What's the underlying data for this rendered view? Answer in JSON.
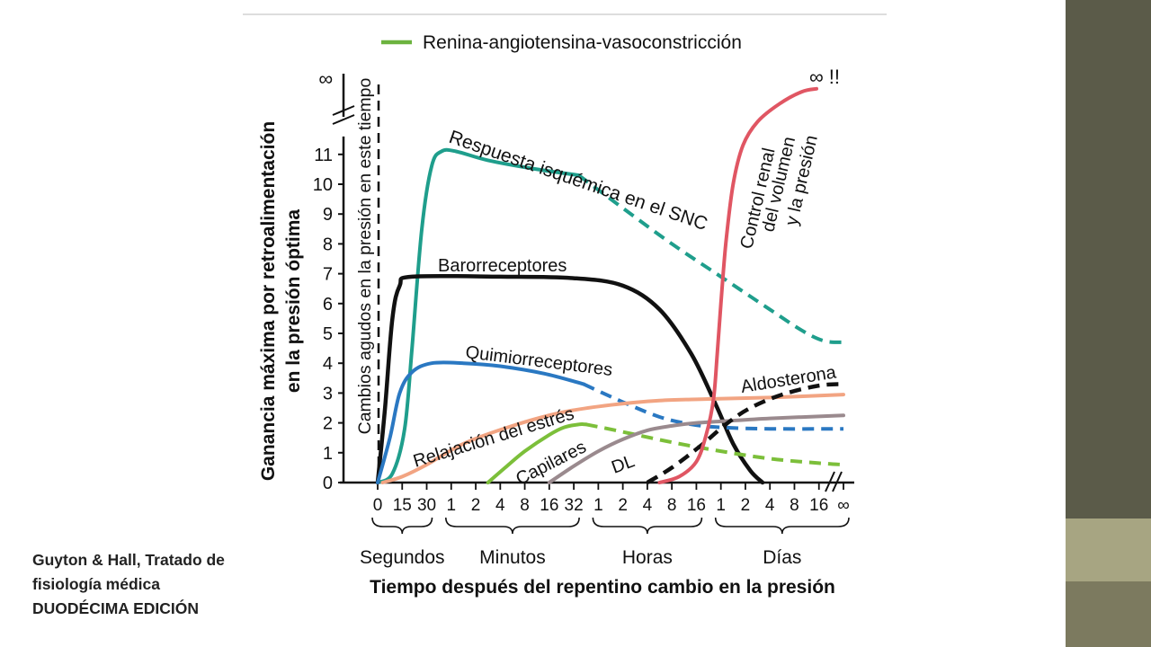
{
  "slide": {
    "accent_colors": [
      "#5b5b49",
      "#a7a582",
      "#7c7a5f"
    ],
    "source_lines": [
      "Guyton & Hall, Tratado de",
      "fisiología médica",
      "DUODÉCIMA EDICIÓN"
    ]
  },
  "chart_data": {
    "type": "line",
    "ylabel": [
      "Ganancia máxima por retroalimentación",
      "en la presión óptima"
    ],
    "xlabel": "Tiempo después del repentino cambio en la presión",
    "y_ticks": [
      "0",
      "1",
      "2",
      "3",
      "4",
      "5",
      "6",
      "7",
      "8",
      "9",
      "10",
      "11"
    ],
    "y_top_label": "∞",
    "ylim": [
      0,
      11
    ],
    "x_ticks": [
      "0",
      "15",
      "30",
      "1",
      "2",
      "4",
      "8",
      "16",
      "32",
      "1",
      "2",
      "4",
      "8",
      "16",
      "1",
      "2",
      "4",
      "8",
      "16",
      "∞"
    ],
    "x_groups": [
      "Segundos",
      "Minutos",
      "Horas",
      "Días"
    ],
    "x_range_index": [
      0,
      19
    ],
    "vertical_annotation": "Cambios agudos en la presión en este tiempo",
    "legend": [
      {
        "label": "Renina-angiotensina-vasoconstricción",
        "color": "#6cb33f"
      }
    ],
    "inf_marker": "∞ !!",
    "series": [
      {
        "name": "Respuesta isquémica en el SNC",
        "color": "#1f9e8c",
        "solid": [
          [
            0,
            0
          ],
          [
            0.6,
            0.3
          ],
          [
            1.1,
            1.8
          ],
          [
            1.4,
            4.5
          ],
          [
            1.8,
            8.5
          ],
          [
            2.2,
            10.6
          ],
          [
            2.6,
            11.1
          ],
          [
            3.2,
            11.1
          ],
          [
            4.5,
            10.8
          ],
          [
            6.5,
            10.5
          ],
          [
            8.2,
            10.3
          ]
        ],
        "dashed": [
          [
            8.2,
            10.3
          ],
          [
            10,
            9.2
          ],
          [
            12,
            8
          ],
          [
            14,
            6.9
          ],
          [
            16,
            5.8
          ],
          [
            17.3,
            5.1
          ],
          [
            18.2,
            4.75
          ],
          [
            19,
            4.7
          ]
        ]
      },
      {
        "name": "Barorreceptores",
        "color": "#111111",
        "solid": [
          [
            0,
            0
          ],
          [
            0.3,
            2.5
          ],
          [
            0.6,
            5.5
          ],
          [
            0.9,
            6.6
          ],
          [
            1.4,
            6.9
          ],
          [
            5,
            6.9
          ],
          [
            8,
            6.85
          ],
          [
            10,
            6.6
          ],
          [
            11.5,
            5.8
          ],
          [
            12.8,
            4.3
          ],
          [
            13.8,
            2.6
          ],
          [
            14.5,
            1.3
          ],
          [
            15.2,
            0.4
          ],
          [
            15.7,
            0
          ]
        ]
      },
      {
        "name": "Quimiorreceptores",
        "color": "#2a78c2",
        "solid": [
          [
            0,
            0
          ],
          [
            0.5,
            1.5
          ],
          [
            0.9,
            3
          ],
          [
            1.4,
            3.7
          ],
          [
            2.2,
            4
          ],
          [
            3.5,
            4
          ],
          [
            5,
            3.9
          ],
          [
            6.8,
            3.65
          ],
          [
            8.4,
            3.3
          ]
        ],
        "dashed": [
          [
            8.4,
            3.3
          ],
          [
            10,
            2.7
          ],
          [
            11.5,
            2.2
          ],
          [
            12.8,
            1.95
          ],
          [
            14,
            1.85
          ],
          [
            16,
            1.8
          ],
          [
            19,
            1.8
          ]
        ]
      },
      {
        "name": "Relajación del estrés",
        "color": "#f2a482",
        "solid": [
          [
            0.2,
            0
          ],
          [
            1,
            0.2
          ],
          [
            2,
            0.6
          ],
          [
            3.5,
            1.3
          ],
          [
            5.5,
            1.9
          ],
          [
            7.5,
            2.35
          ],
          [
            9.5,
            2.6
          ],
          [
            11.5,
            2.75
          ],
          [
            13.5,
            2.8
          ],
          [
            16,
            2.85
          ],
          [
            19,
            2.95
          ]
        ]
      },
      {
        "name": "Capilares",
        "color": "#7cbf3a",
        "solid": [
          [
            4.5,
            0
          ],
          [
            5.2,
            0.5
          ],
          [
            6,
            1.05
          ],
          [
            7,
            1.6
          ],
          [
            7.6,
            1.85
          ],
          [
            8.2,
            1.95
          ],
          [
            8.5,
            1.95
          ]
        ],
        "dashed": [
          [
            8.5,
            1.95
          ],
          [
            10,
            1.7
          ],
          [
            12,
            1.35
          ],
          [
            14,
            1.05
          ],
          [
            16,
            0.8
          ],
          [
            18,
            0.65
          ],
          [
            19,
            0.6
          ]
        ]
      },
      {
        "name": "DL",
        "color": "#9a8a8e",
        "solid": [
          [
            7,
            0
          ],
          [
            8,
            0.55
          ],
          [
            9,
            1.05
          ],
          [
            10,
            1.45
          ],
          [
            11,
            1.75
          ],
          [
            12,
            1.9
          ],
          [
            13,
            2
          ],
          [
            14,
            2.05
          ],
          [
            16,
            2.15
          ],
          [
            19,
            2.25
          ]
        ]
      },
      {
        "name": "Aldosterona",
        "color": "#111111",
        "dashed": [
          [
            11,
            0
          ],
          [
            12,
            0.5
          ],
          [
            13.2,
            1.25
          ],
          [
            14.2,
            1.95
          ],
          [
            15.2,
            2.5
          ],
          [
            16.5,
            2.95
          ],
          [
            18,
            3.25
          ],
          [
            19,
            3.3
          ]
        ]
      },
      {
        "name": "Control renal del volumen y la presión",
        "color": "#e05663",
        "solid": [
          [
            11.5,
            0
          ],
          [
            12.3,
            0.2
          ],
          [
            13,
            0.7
          ],
          [
            13.4,
            1.6
          ],
          [
            13.7,
            2.8
          ],
          [
            13.85,
            4.3
          ],
          [
            14,
            6
          ],
          [
            14.2,
            8
          ],
          [
            14.5,
            10
          ],
          [
            14.9,
            11.3
          ],
          [
            15.5,
            12.1
          ],
          [
            16.4,
            12.7
          ],
          [
            17.3,
            13.1
          ],
          [
            17.9,
            13.2
          ]
        ]
      }
    ],
    "curve_labels": [
      {
        "text": "Respuesta isquémica en el SNC"
      },
      {
        "text": "Barorreceptores"
      },
      {
        "text": "Quimiorreceptores"
      },
      {
        "text": "Relajación del estrés"
      },
      {
        "text": "Capilares"
      },
      {
        "text": "DL"
      },
      {
        "text": "Aldosterona"
      },
      {
        "text": "Control renal"
      },
      {
        "text": "del volumen"
      },
      {
        "text": "y la presión"
      }
    ]
  }
}
